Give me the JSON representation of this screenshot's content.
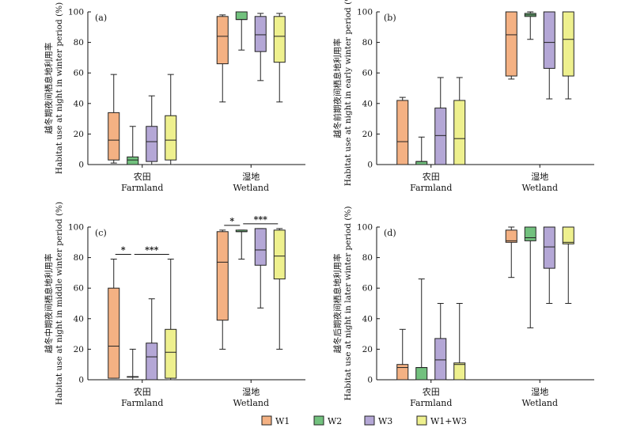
{
  "colors": {
    "W1": "#f4b183",
    "W2": "#72c17e",
    "W3": "#b4a7d6",
    "W1+W3": "#eef08e",
    "stroke": "#222222"
  },
  "legend": {
    "position": "bottom-center",
    "labels": [
      "W1",
      "W2",
      "W3",
      "W1+W3"
    ]
  },
  "chart_data": [
    {
      "type": "box",
      "panel_label": "(a)",
      "ylabel_zh": "越冬期夜间栖息地利用率",
      "ylabel_en": "Habitat use at night in winter period (%)",
      "ylim": [
        0,
        100
      ],
      "yticks": [
        "0",
        "20",
        "40",
        "60",
        "80",
        "100"
      ],
      "groups": [
        {
          "label_zh": "农田",
          "label_en": "Farmland",
          "boxes": [
            {
              "series": "W1",
              "min": 1,
              "q1": 3,
              "median": 16,
              "q3": 34,
              "max": 59
            },
            {
              "series": "W2",
              "min": 0,
              "q1": 0,
              "median": 3,
              "q3": 5,
              "max": 25
            },
            {
              "series": "W3",
              "min": 0,
              "q1": 2,
              "median": 15,
              "q3": 25,
              "max": 45
            },
            {
              "series": "W1+W3",
              "min": 0,
              "q1": 3,
              "median": 16,
              "q3": 32,
              "max": 59
            }
          ]
        },
        {
          "label_zh": "湿地",
          "label_en": "Wetland",
          "boxes": [
            {
              "series": "W1",
              "min": 41,
              "q1": 66,
              "median": 84,
              "q3": 97,
              "max": 98
            },
            {
              "series": "W2",
              "min": 75,
              "q1": 95,
              "median": 95,
              "q3": 100,
              "max": 100
            },
            {
              "series": "W3",
              "min": 55,
              "q1": 74,
              "median": 85,
              "q3": 97,
              "max": 99
            },
            {
              "series": "W1+W3",
              "min": 41,
              "q1": 67,
              "median": 84,
              "q3": 97,
              "max": 99
            }
          ]
        }
      ],
      "annotations": []
    },
    {
      "type": "box",
      "panel_label": "(b)",
      "ylabel_zh": "越冬前期夜间栖息地利用率",
      "ylabel_en": "Habitat use at night in early winter period (%)",
      "ylim": [
        0,
        100
      ],
      "yticks": [
        "0",
        "20",
        "40",
        "60",
        "80",
        "100"
      ],
      "groups": [
        {
          "label_zh": "农田",
          "label_en": "Farmland",
          "boxes": [
            {
              "series": "W1",
              "min": 0,
              "q1": 0,
              "median": 15,
              "q3": 42,
              "max": 44
            },
            {
              "series": "W2",
              "min": 0,
              "q1": 0,
              "median": 2,
              "q3": 2,
              "max": 18
            },
            {
              "series": "W3",
              "min": 0,
              "q1": 0,
              "median": 19,
              "q3": 37,
              "max": 57
            },
            {
              "series": "W1+W3",
              "min": 0,
              "q1": 0,
              "median": 17,
              "q3": 42,
              "max": 57
            }
          ]
        },
        {
          "label_zh": "湿地",
          "label_en": "Wetland",
          "boxes": [
            {
              "series": "W1",
              "min": 56,
              "q1": 58,
              "median": 85,
              "q3": 100,
              "max": 100
            },
            {
              "series": "W2",
              "min": 82,
              "q1": 97,
              "median": 98,
              "q3": 99,
              "max": 100
            },
            {
              "series": "W3",
              "min": 43,
              "q1": 63,
              "median": 80,
              "q3": 100,
              "max": 100
            },
            {
              "series": "W1+W3",
              "min": 43,
              "q1": 58,
              "median": 82,
              "q3": 100,
              "max": 100
            }
          ]
        }
      ],
      "annotations": []
    },
    {
      "type": "box",
      "panel_label": "(c)",
      "ylabel_zh": "越冬中期夜间栖息地利用率",
      "ylabel_en": "Habitat use at night in middle winter period (%)",
      "ylim": [
        0,
        100
      ],
      "yticks": [
        "0",
        "20",
        "40",
        "60",
        "80",
        "100"
      ],
      "groups": [
        {
          "label_zh": "农田",
          "label_en": "Farmland",
          "boxes": [
            {
              "series": "W1",
              "min": 1,
              "q1": 1,
              "median": 22,
              "q3": 60,
              "max": 79
            },
            {
              "series": "W2",
              "min": 0,
              "q1": 2,
              "median": 2,
              "q3": 2,
              "max": 20
            },
            {
              "series": "W3",
              "min": 0,
              "q1": 0,
              "median": 15,
              "q3": 24,
              "max": 53
            },
            {
              "series": "W1+W3",
              "min": 0,
              "q1": 1,
              "median": 18,
              "q3": 33,
              "max": 79
            }
          ]
        },
        {
          "label_zh": "湿地",
          "label_en": "Wetland",
          "boxes": [
            {
              "series": "W1",
              "min": 20,
              "q1": 39,
              "median": 77,
              "q3": 97,
              "max": 98
            },
            {
              "series": "W2",
              "min": 79,
              "q1": 97,
              "median": 97,
              "q3": 98,
              "max": 98
            },
            {
              "series": "W3",
              "min": 47,
              "q1": 75,
              "median": 85,
              "q3": 99,
              "max": 99
            },
            {
              "series": "W1+W3",
              "min": 20,
              "q1": 66,
              "median": 81,
              "q3": 98,
              "max": 99
            }
          ]
        }
      ],
      "annotations": [
        {
          "group": 0,
          "from": 0,
          "to": 1,
          "text": "*"
        },
        {
          "group": 0,
          "from": 1,
          "to": 3,
          "text": "***"
        },
        {
          "group": 1,
          "from": 0,
          "to": 1,
          "text": "*"
        },
        {
          "group": 1,
          "from": 1,
          "to": 3,
          "text": "***"
        }
      ]
    },
    {
      "type": "box",
      "panel_label": "(d)",
      "ylabel_zh": "越冬后期夜间栖息地利用率",
      "ylabel_en": "Habitat use at night in later winter period (%)",
      "ylim": [
        0,
        100
      ],
      "yticks": [
        "0",
        "20",
        "40",
        "60",
        "80",
        "100"
      ],
      "groups": [
        {
          "label_zh": "农田",
          "label_en": "Farmland",
          "boxes": [
            {
              "series": "W1",
              "min": 0,
              "q1": 0,
              "median": 8,
              "q3": 10,
              "max": 33
            },
            {
              "series": "W2",
              "min": 0,
              "q1": 0,
              "median": 8,
              "q3": 8,
              "max": 66
            },
            {
              "series": "W3",
              "min": 0,
              "q1": 0,
              "median": 13,
              "q3": 27,
              "max": 50
            },
            {
              "series": "W1+W3",
              "min": 0,
              "q1": 0,
              "median": 10,
              "q3": 11,
              "max": 50
            }
          ]
        },
        {
          "label_zh": "湿地",
          "label_en": "Wetland",
          "boxes": [
            {
              "series": "W1",
              "min": 67,
              "q1": 90,
              "median": 91,
              "q3": 98,
              "max": 100
            },
            {
              "series": "W2",
              "min": 34,
              "q1": 91,
              "median": 93,
              "q3": 100,
              "max": 100
            },
            {
              "series": "W3",
              "min": 50,
              "q1": 73,
              "median": 87,
              "q3": 100,
              "max": 100
            },
            {
              "series": "W1+W3",
              "min": 50,
              "q1": 89,
              "median": 90,
              "q3": 100,
              "max": 100
            }
          ]
        }
      ],
      "annotations": []
    }
  ]
}
